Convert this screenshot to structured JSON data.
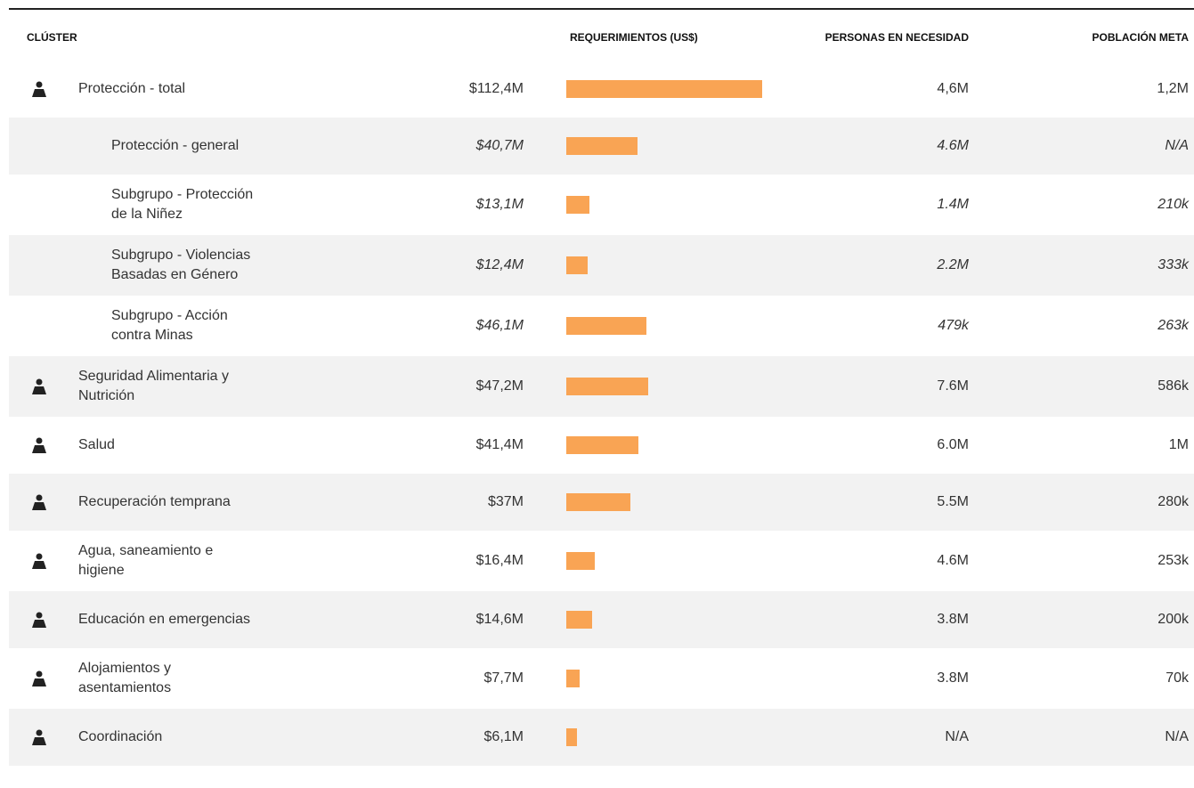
{
  "table": {
    "headers": [
      "CLÚSTER",
      "REQUERIMIENTOS (US$)",
      "PERSONAS EN NECESIDAD",
      "POBLACIÓN META"
    ],
    "rows": [
      {
        "label": [
          "Protección - total"
        ],
        "requirement": 112.4,
        "requirement_label": "$112,4M",
        "people": "4,6M",
        "target": "1,2M"
      },
      {
        "label": [
          "Protección - general"
        ],
        "sub": true,
        "requirement": 40.7,
        "requirement_label": "$40,7M",
        "people": "4.6M",
        "target": "N/A"
      },
      {
        "label": [
          "Subgrupo - Protección",
          "de la Niñez"
        ],
        "sub": true,
        "requirement": 13.1,
        "requirement_label": "$13,1M",
        "people": "1.4M",
        "target": "210k"
      },
      {
        "label": [
          "Subgrupo  - Violencias",
          "Basadas en Género"
        ],
        "sub": true,
        "requirement": 12.4,
        "requirement_label": "$12,4M",
        "people": "2.2M",
        "target": "333k"
      },
      {
        "label": [
          "Subgrupo - Acción",
          "contra Minas"
        ],
        "sub": true,
        "requirement": 46.1,
        "requirement_label": "$46,1M",
        "people": "479k",
        "target": "263k"
      },
      {
        "label": [
          "Seguridad Alimentaria y",
          "Nutrición"
        ],
        "requirement": 47.2,
        "requirement_label": "$47,2M",
        "people": "7.6M",
        "target": "586k"
      },
      {
        "label": [
          "Salud"
        ],
        "requirement": 41.4,
        "requirement_label": "$41,4M",
        "people": "6.0M",
        "target": "1M"
      },
      {
        "label": [
          "Recuperación temprana"
        ],
        "requirement": 37,
        "requirement_label": "$37M",
        "people": "5.5M",
        "target": "280k"
      },
      {
        "label": [
          "Agua, saneamiento e",
          "higiene"
        ],
        "requirement": 16.4,
        "requirement_label": "$16,4M",
        "people": "4.6M",
        "target": "253k"
      },
      {
        "label": [
          "Educación en emergencias"
        ],
        "requirement": 14.6,
        "requirement_label": "$14,6M",
        "people": "3.8M",
        "target": "200k"
      },
      {
        "label": [
          "Alojamientos y",
          "asentamientos"
        ],
        "requirement": 7.7,
        "requirement_label": "$7,7M",
        "people": "3.8M",
        "target": "70k"
      },
      {
        "label": [
          "Coordinación"
        ],
        "requirement": 6.1,
        "requirement_label": "$6,1M",
        "people": "N/A",
        "target": "N/A"
      }
    ]
  }
}
